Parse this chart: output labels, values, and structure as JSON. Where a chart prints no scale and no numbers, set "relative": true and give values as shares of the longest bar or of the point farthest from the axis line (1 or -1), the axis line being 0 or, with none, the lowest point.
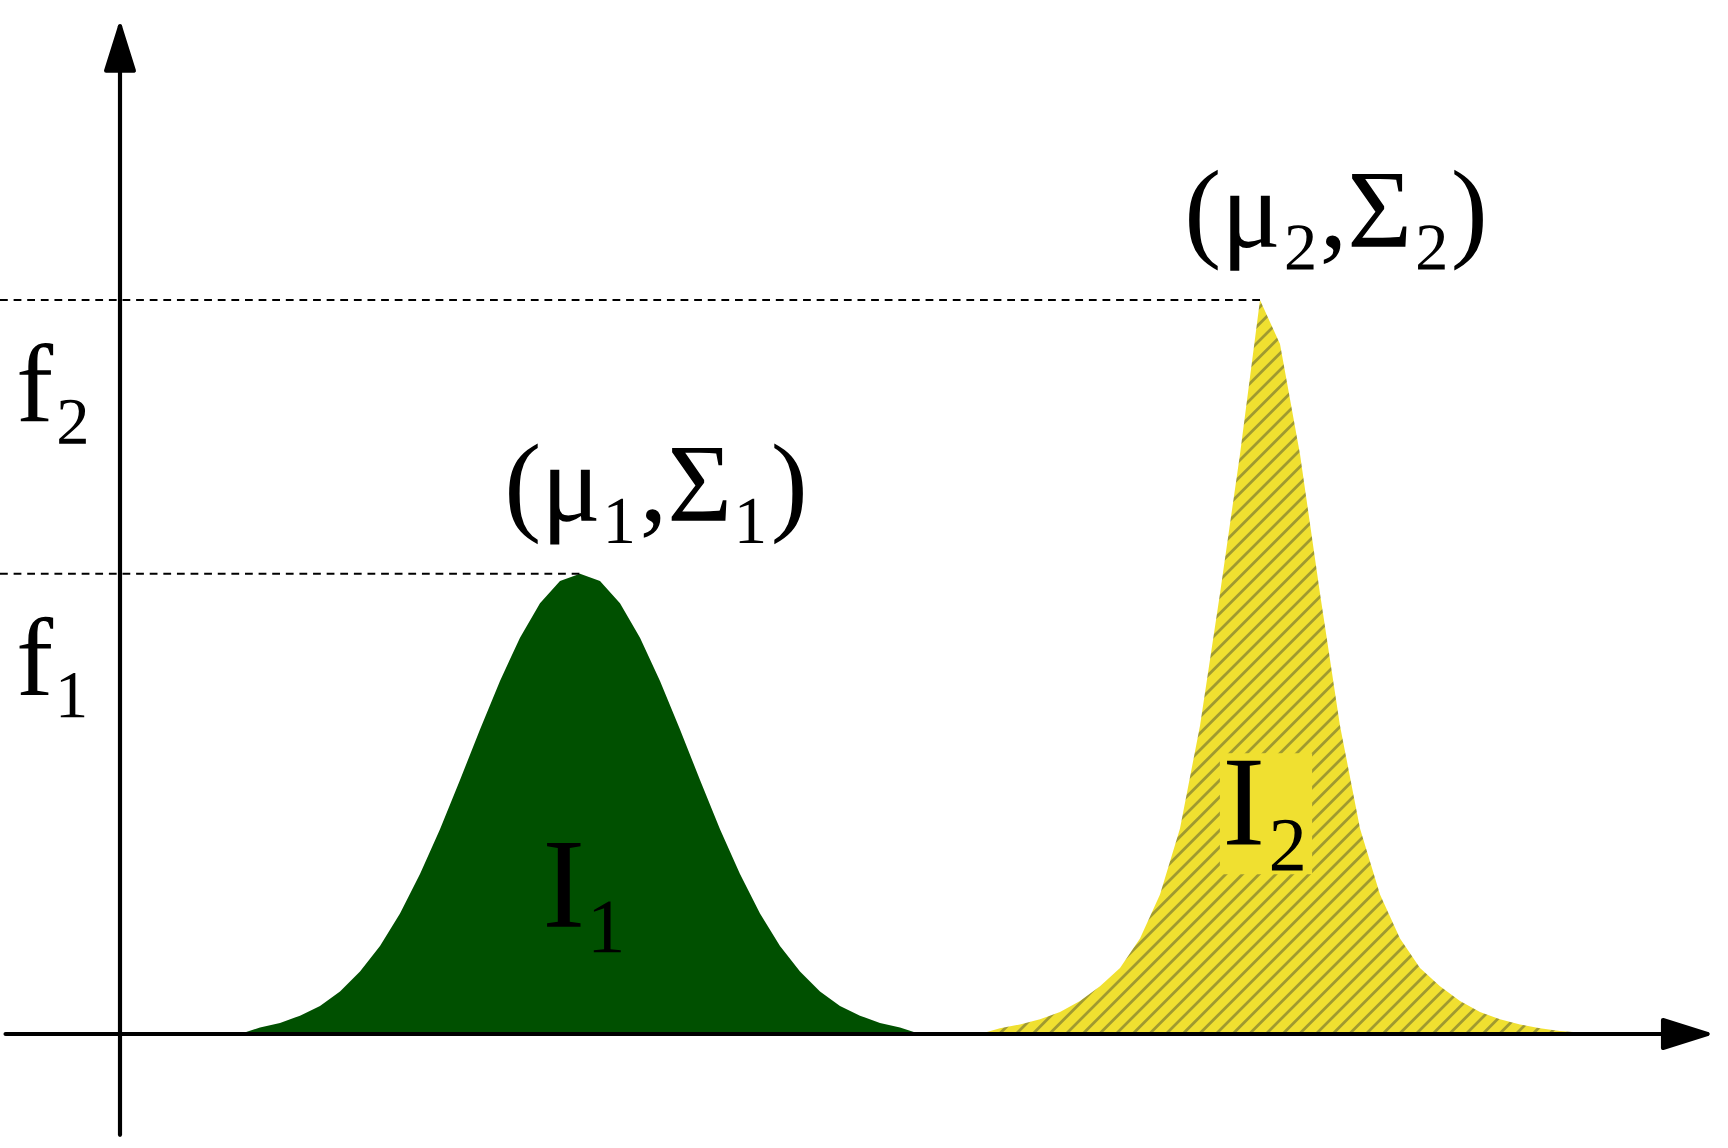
{
  "chart_data": {
    "type": "area",
    "relative": true,
    "categories": [
      null,
      null,
      null,
      null,
      null,
      null,
      null,
      null,
      null,
      null,
      null,
      null,
      null,
      null,
      null,
      null,
      null,
      null,
      null,
      null,
      null,
      null,
      null,
      null,
      null,
      null,
      null,
      null,
      null,
      null,
      null,
      null,
      null,
      null,
      null,
      null,
      null,
      null,
      null,
      null,
      null,
      null,
      null,
      null,
      null,
      null,
      null,
      null,
      null,
      null,
      null,
      null,
      null,
      null,
      null,
      null,
      null,
      null,
      null,
      null,
      null,
      null,
      null,
      null,
      null,
      null,
      null,
      null,
      null,
      null,
      null,
      null,
      null,
      null,
      null,
      null,
      null
    ],
    "series": [
      {
        "name": "I₁",
        "color": "#005000",
        "values": [
          null,
          null,
          null,
          null,
          null,
          null,
          0,
          0.009,
          0.015,
          0.025,
          0.038,
          0.058,
          0.085,
          0.12,
          0.164,
          0.218,
          0.279,
          0.346,
          0.415,
          0.481,
          0.54,
          0.587,
          0.617,
          0.627,
          0.617,
          0.587,
          0.54,
          0.481,
          0.415,
          0.346,
          0.279,
          0.218,
          0.164,
          0.12,
          0.085,
          0.058,
          0.038,
          0.025,
          0.015,
          0.009,
          0,
          null,
          null,
          null,
          null,
          null,
          null,
          null,
          null,
          null,
          null,
          null,
          null,
          null,
          null,
          null,
          null,
          null,
          null,
          null,
          null,
          null,
          null,
          null,
          null,
          null,
          null,
          null,
          null,
          null,
          null,
          null,
          null,
          null,
          null,
          null,
          null
        ]
      },
      {
        "name": "I₂",
        "color": "#f0e030",
        "values": [
          null,
          null,
          null,
          null,
          null,
          null,
          null,
          null,
          null,
          null,
          null,
          null,
          null,
          null,
          null,
          null,
          null,
          null,
          null,
          null,
          null,
          null,
          null,
          null,
          null,
          null,
          null,
          null,
          null,
          null,
          null,
          null,
          null,
          null,
          null,
          null,
          null,
          null,
          null,
          null,
          null,
          null,
          null,
          0,
          0.008,
          0.013,
          0.02,
          0.03,
          0.045,
          0.065,
          0.09,
          0.13,
          0.19,
          0.28,
          0.42,
          0.6,
          0.79,
          1,
          0.94,
          0.79,
          0.6,
          0.42,
          0.28,
          0.19,
          0.13,
          0.09,
          0.065,
          0.045,
          0.03,
          0.02,
          0.013,
          0.008,
          0.004,
          0.002,
          0,
          null,
          null
        ]
      }
    ],
    "ref_lines": [
      {
        "axis": "y",
        "value": 0.627,
        "label": "f₁",
        "line_style": "dashed"
      },
      {
        "axis": "y",
        "value": 1,
        "label": "f₂",
        "line_style": "dashed"
      }
    ],
    "annotations": [
      "(μ₁,Σ₁)",
      "(μ₂,Σ₂)"
    ]
  }
}
